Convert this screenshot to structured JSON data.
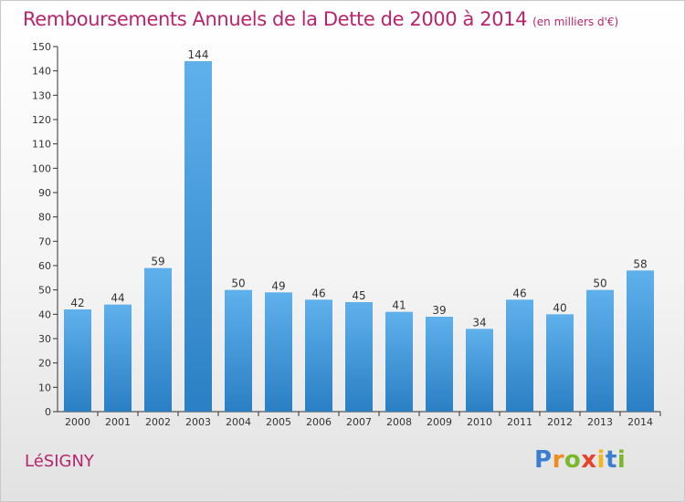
{
  "header": {
    "title": "Remboursements Annuels de la Dette de 2000 à 2014",
    "unit": "(en milliers d'€)"
  },
  "footer": {
    "place": "LéSIGNY",
    "logo": [
      "P",
      "r",
      "o",
      "x",
      "i",
      "t",
      "i"
    ]
  },
  "colors": {
    "title": "#b8246e",
    "bar_top": "#5fb1ec",
    "bar_bottom": "#2a7fc4",
    "logo": [
      "#3a7fd0",
      "#f08c1e",
      "#7ab929",
      "#e8432c",
      "#f0b81e",
      "#3a7fd0",
      "#7ab929"
    ]
  },
  "chart_data": {
    "type": "bar",
    "categories": [
      "2000",
      "2001",
      "2002",
      "2003",
      "2004",
      "2005",
      "2006",
      "2007",
      "2008",
      "2009",
      "2010",
      "2011",
      "2012",
      "2013",
      "2014"
    ],
    "values": [
      42,
      44,
      59,
      144,
      50,
      49,
      46,
      45,
      41,
      39,
      34,
      46,
      40,
      50,
      58
    ],
    "title": "Remboursements Annuels de la Dette de 2000 à 2014",
    "xlabel": "",
    "ylabel": "",
    "ylim": [
      0,
      150
    ],
    "yticks": [
      0,
      10,
      20,
      30,
      40,
      50,
      60,
      70,
      80,
      90,
      100,
      110,
      120,
      130,
      140,
      150
    ],
    "grid": false,
    "data_labels": true
  }
}
